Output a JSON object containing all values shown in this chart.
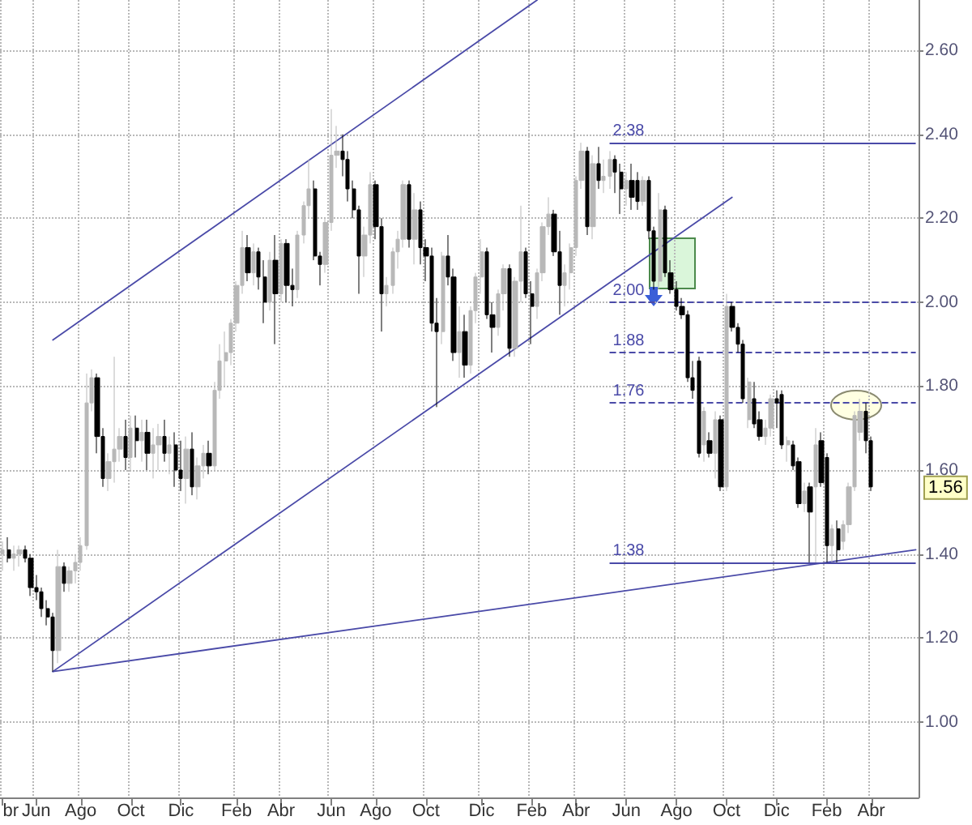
{
  "chart_data": {
    "type": "candlestick",
    "categories": [
      "br",
      null,
      null,
      null,
      null,
      null,
      "Jun",
      null,
      null,
      null,
      null,
      null,
      null,
      null,
      "Ago",
      null,
      null,
      null,
      null,
      null,
      null,
      null,
      null,
      "Oct",
      null,
      null,
      null,
      null,
      null,
      null,
      null,
      null,
      "Dic",
      null,
      null,
      null,
      null,
      null,
      null,
      null,
      null,
      null,
      "Feb",
      null,
      null,
      null,
      null,
      null,
      null,
      null,
      "Abr",
      null,
      null,
      null,
      null,
      null,
      null,
      null,
      null,
      "Jun",
      null,
      null,
      null,
      null,
      null,
      null,
      null,
      "Ago",
      null,
      null,
      null,
      null,
      null,
      null,
      null,
      null,
      "Oct",
      null,
      null,
      null,
      null,
      null,
      null,
      null,
      null,
      null,
      "Dic",
      null,
      null,
      null,
      null,
      null,
      null,
      null,
      null,
      "Feb",
      null,
      null,
      null,
      null,
      null,
      null,
      null,
      "Abr",
      null,
      null,
      null,
      null,
      null,
      null,
      null,
      null,
      "Jun",
      null,
      null,
      null,
      null,
      null,
      null,
      null,
      null,
      "Ago",
      null,
      null,
      null,
      null,
      null,
      null,
      null,
      null,
      "Oct",
      null,
      null,
      null,
      null,
      null,
      null,
      null,
      null,
      "Dic",
      null,
      null,
      null,
      null,
      null,
      null,
      null,
      null,
      "Feb",
      null,
      null,
      null,
      null,
      null,
      null,
      null,
      "Abr",
      null,
      null,
      null,
      null,
      null,
      null,
      null,
      null
    ],
    "ohlc": [
      [
        1.4,
        1.43,
        1.36,
        1.41
      ],
      [
        1.41,
        1.44,
        1.38,
        1.39
      ],
      [
        1.39,
        1.42,
        1.36,
        1.4
      ],
      [
        1.4,
        1.42,
        1.37,
        1.41
      ],
      [
        1.41,
        1.42,
        1.38,
        1.39
      ],
      [
        1.39,
        1.4,
        1.3,
        1.32
      ],
      [
        1.32,
        1.35,
        1.29,
        1.31
      ],
      [
        1.31,
        1.32,
        1.25,
        1.27
      ],
      [
        1.27,
        1.29,
        1.23,
        1.25
      ],
      [
        1.25,
        1.26,
        1.12,
        1.17
      ],
      [
        1.17,
        1.41,
        1.14,
        1.37
      ],
      [
        1.37,
        1.38,
        1.31,
        1.33
      ],
      [
        1.33,
        1.37,
        1.31,
        1.36
      ],
      [
        1.36,
        1.4,
        1.33,
        1.38
      ],
      [
        1.38,
        1.44,
        1.36,
        1.42
      ],
      [
        1.42,
        1.83,
        1.41,
        1.76
      ],
      [
        1.76,
        1.84,
        1.74,
        1.82
      ],
      [
        1.82,
        1.83,
        1.64,
        1.68
      ],
      [
        1.68,
        1.7,
        1.56,
        1.58
      ],
      [
        1.58,
        1.64,
        1.55,
        1.62
      ],
      [
        1.62,
        1.87,
        1.57,
        1.65
      ],
      [
        1.65,
        1.7,
        1.62,
        1.68
      ],
      [
        1.68,
        1.72,
        1.6,
        1.63
      ],
      [
        1.63,
        1.73,
        1.6,
        1.7
      ],
      [
        1.7,
        1.73,
        1.63,
        1.67
      ],
      [
        1.67,
        1.72,
        1.62,
        1.69
      ],
      [
        1.69,
        1.72,
        1.6,
        1.64
      ],
      [
        1.64,
        1.7,
        1.58,
        1.66
      ],
      [
        1.66,
        1.71,
        1.6,
        1.68
      ],
      [
        1.68,
        1.72,
        1.62,
        1.64
      ],
      [
        1.64,
        1.68,
        1.59,
        1.66
      ],
      [
        1.66,
        1.69,
        1.56,
        1.6
      ],
      [
        1.6,
        1.67,
        1.55,
        1.58
      ],
      [
        1.58,
        1.68,
        1.52,
        1.65
      ],
      [
        1.65,
        1.69,
        1.54,
        1.56
      ],
      [
        1.56,
        1.63,
        1.53,
        1.61
      ],
      [
        1.61,
        1.66,
        1.58,
        1.64
      ],
      [
        1.64,
        1.67,
        1.59,
        1.61
      ],
      [
        1.61,
        1.81,
        1.6,
        1.79
      ],
      [
        1.79,
        1.9,
        1.77,
        1.86
      ],
      [
        1.86,
        1.93,
        1.8,
        1.88
      ],
      [
        1.88,
        1.96,
        1.85,
        1.95
      ],
      [
        1.95,
        2.05,
        1.93,
        2.04
      ],
      [
        2.04,
        2.17,
        2.02,
        2.13
      ],
      [
        2.13,
        2.16,
        2.05,
        2.07
      ],
      [
        2.07,
        2.14,
        2.04,
        2.12
      ],
      [
        2.12,
        2.13,
        2.03,
        2.06
      ],
      [
        2.06,
        2.1,
        1.95,
        2.0
      ],
      [
        2.0,
        2.12,
        1.98,
        2.1
      ],
      [
        2.1,
        2.16,
        1.9,
        2.02
      ],
      [
        2.02,
        2.15,
        2.0,
        2.14
      ],
      [
        2.14,
        2.15,
        2.0,
        2.04
      ],
      [
        2.04,
        2.08,
        1.99,
        2.03
      ],
      [
        2.03,
        2.17,
        2.01,
        2.16
      ],
      [
        2.16,
        2.24,
        2.14,
        2.23
      ],
      [
        2.23,
        2.34,
        2.2,
        2.27
      ],
      [
        2.27,
        2.29,
        2.1,
        2.11
      ],
      [
        2.11,
        2.12,
        2.04,
        2.09
      ],
      [
        2.09,
        2.2,
        2.07,
        2.19
      ],
      [
        2.19,
        2.46,
        2.17,
        2.35
      ],
      [
        2.35,
        2.42,
        2.32,
        2.36
      ],
      [
        2.36,
        2.4,
        2.3,
        2.34
      ],
      [
        2.34,
        2.36,
        2.24,
        2.27
      ],
      [
        2.27,
        2.29,
        2.2,
        2.22
      ],
      [
        2.22,
        2.23,
        2.02,
        2.11
      ],
      [
        2.11,
        2.18,
        2.06,
        2.16
      ],
      [
        2.16,
        2.31,
        2.14,
        2.28
      ],
      [
        2.28,
        2.29,
        2.15,
        2.18
      ],
      [
        2.18,
        2.2,
        1.93,
        2.02
      ],
      [
        2.02,
        2.06,
        1.99,
        2.04
      ],
      [
        2.04,
        2.13,
        2.02,
        2.12
      ],
      [
        2.12,
        2.17,
        2.08,
        2.15
      ],
      [
        2.15,
        2.29,
        2.13,
        2.28
      ],
      [
        2.28,
        2.29,
        2.13,
        2.15
      ],
      [
        2.15,
        2.26,
        2.09,
        2.22
      ],
      [
        2.22,
        2.24,
        2.09,
        2.13
      ],
      [
        2.13,
        2.15,
        2.05,
        2.11
      ],
      [
        2.11,
        2.13,
        1.93,
        1.95
      ],
      [
        1.95,
        2.01,
        1.75,
        1.93
      ],
      [
        1.93,
        2.12,
        1.9,
        2.11
      ],
      [
        2.11,
        2.16,
        2.04,
        2.06
      ],
      [
        2.06,
        2.08,
        1.86,
        1.88
      ],
      [
        1.88,
        1.99,
        1.82,
        1.93
      ],
      [
        1.93,
        1.97,
        1.82,
        1.85
      ],
      [
        1.85,
        1.99,
        1.83,
        1.98
      ],
      [
        1.98,
        2.07,
        1.95,
        2.06
      ],
      [
        2.06,
        2.15,
        2.02,
        2.12
      ],
      [
        2.12,
        2.13,
        1.96,
        1.97
      ],
      [
        1.97,
        2.0,
        1.88,
        1.94
      ],
      [
        1.94,
        2.03,
        1.92,
        2.02
      ],
      [
        2.02,
        2.09,
        1.98,
        2.08
      ],
      [
        2.08,
        2.09,
        1.87,
        1.89
      ],
      [
        1.89,
        2.06,
        1.87,
        2.05
      ],
      [
        2.05,
        2.23,
        2.0,
        2.12
      ],
      [
        2.12,
        2.13,
        2.01,
        2.02
      ],
      [
        2.02,
        2.05,
        1.9,
        1.99
      ],
      [
        1.99,
        2.08,
        1.96,
        2.07
      ],
      [
        2.07,
        2.19,
        2.05,
        2.18
      ],
      [
        2.18,
        2.25,
        2.16,
        2.21
      ],
      [
        2.21,
        2.22,
        2.11,
        2.12
      ],
      [
        2.12,
        2.17,
        1.97,
        2.04
      ],
      [
        2.04,
        2.09,
        1.99,
        2.07
      ],
      [
        2.07,
        2.14,
        2.03,
        2.13
      ],
      [
        2.13,
        2.3,
        2.11,
        2.29
      ],
      [
        2.29,
        2.38,
        2.27,
        2.36
      ],
      [
        2.36,
        2.37,
        2.16,
        2.18
      ],
      [
        2.18,
        2.35,
        2.15,
        2.33
      ],
      [
        2.33,
        2.37,
        2.27,
        2.29
      ],
      [
        2.29,
        2.34,
        2.26,
        2.3
      ],
      [
        2.3,
        2.36,
        2.27,
        2.34
      ],
      [
        2.34,
        2.35,
        2.26,
        2.31
      ],
      [
        2.31,
        2.33,
        2.21,
        2.27
      ],
      [
        2.27,
        2.31,
        2.23,
        2.29
      ],
      [
        2.29,
        2.33,
        2.22,
        2.25
      ],
      [
        2.29,
        2.31,
        2.22,
        2.24
      ],
      [
        2.24,
        2.3,
        2.23,
        2.29
      ],
      [
        2.29,
        2.3,
        2.15,
        2.17
      ],
      [
        2.17,
        2.18,
        2.03,
        2.05
      ],
      [
        2.05,
        2.26,
        2.03,
        2.22
      ],
      [
        2.22,
        2.23,
        2.06,
        2.07
      ],
      [
        2.07,
        2.1,
        2.02,
        2.03
      ],
      [
        2.03,
        2.05,
        1.98,
        1.99
      ],
      [
        1.99,
        2.01,
        1.96,
        1.97
      ],
      [
        1.97,
        1.98,
        1.81,
        1.82
      ],
      [
        1.82,
        1.86,
        1.77,
        1.79
      ],
      [
        1.86,
        1.87,
        1.63,
        1.64
      ],
      [
        1.66,
        1.75,
        1.62,
        1.74
      ],
      [
        1.67,
        1.69,
        1.63,
        1.64
      ],
      [
        1.64,
        1.74,
        1.58,
        1.72
      ],
      [
        1.72,
        1.73,
        1.55,
        1.56
      ],
      [
        1.56,
        2.02,
        1.55,
        1.99
      ],
      [
        1.99,
        2.0,
        1.93,
        1.94
      ],
      [
        1.94,
        1.95,
        1.88,
        1.9
      ],
      [
        1.9,
        1.91,
        1.76,
        1.77
      ],
      [
        1.72,
        1.82,
        1.7,
        1.81
      ],
      [
        1.77,
        1.81,
        1.7,
        1.71
      ],
      [
        1.72,
        1.74,
        1.67,
        1.68
      ],
      [
        1.68,
        1.72,
        1.66,
        1.7
      ],
      [
        1.7,
        1.78,
        1.68,
        1.77
      ],
      [
        1.77,
        1.79,
        1.7,
        1.76
      ],
      [
        1.78,
        1.79,
        1.65,
        1.66
      ],
      [
        1.66,
        1.68,
        1.62,
        1.67
      ],
      [
        1.66,
        1.67,
        1.6,
        1.61
      ],
      [
        1.62,
        1.63,
        1.51,
        1.52
      ],
      [
        1.52,
        1.57,
        1.5,
        1.55
      ],
      [
        1.56,
        1.57,
        1.38,
        1.5
      ],
      [
        1.56,
        1.7,
        1.38,
        1.66
      ],
      [
        1.67,
        1.69,
        1.56,
        1.57
      ],
      [
        1.63,
        1.64,
        1.38,
        1.42
      ],
      [
        1.42,
        1.47,
        1.38,
        1.46
      ],
      [
        1.46,
        1.48,
        1.38,
        1.41
      ],
      [
        1.43,
        1.48,
        1.41,
        1.47
      ],
      [
        1.47,
        1.57,
        1.45,
        1.56
      ],
      [
        1.56,
        1.74,
        1.55,
        1.73
      ],
      [
        1.69,
        1.77,
        1.67,
        1.74
      ],
      [
        1.74,
        1.76,
        1.64,
        1.67
      ],
      [
        1.67,
        1.68,
        1.55,
        1.56
      ],
      null,
      null,
      null,
      null,
      null,
      null,
      null,
      null
    ],
    "colors": [
      "#b8b8b8",
      "#000000",
      "#b8b8b8",
      "#b8b8b8",
      "#000000",
      "#000000",
      "#000000",
      "#000000",
      "#000000",
      "#000000",
      "#b8b8b8",
      "#000000",
      "#b8b8b8",
      "#b8b8b8",
      "#b8b8b8",
      "#b8b8b8",
      "#b8b8b8",
      "#000000",
      "#000000",
      "#b8b8b8",
      "#b8b8b8",
      "#b8b8b8",
      "#000000",
      "#b8b8b8",
      "#000000",
      "#b8b8b8",
      "#000000",
      "#b8b8b8",
      "#b8b8b8",
      "#000000",
      "#b8b8b8",
      "#000000",
      "#000000",
      "#b8b8b8",
      "#000000",
      "#b8b8b8",
      "#b8b8b8",
      "#000000",
      "#b8b8b8",
      "#b8b8b8",
      "#b8b8b8",
      "#b8b8b8",
      "#b8b8b8",
      "#b8b8b8",
      "#000000",
      "#b8b8b8",
      "#000000",
      "#000000",
      "#b8b8b8",
      "#000000",
      "#b8b8b8",
      "#000000",
      "#000000",
      "#b8b8b8",
      "#b8b8b8",
      "#b8b8b8",
      "#000000",
      "#000000",
      "#b8b8b8",
      "#b8b8b8",
      "#b8b8b8",
      "#000000",
      "#000000",
      "#000000",
      "#000000",
      "#b8b8b8",
      "#b8b8b8",
      "#000000",
      "#000000",
      "#b8b8b8",
      "#b8b8b8",
      "#b8b8b8",
      "#b8b8b8",
      "#000000",
      "#b8b8b8",
      "#000000",
      "#000000",
      "#000000",
      "#000000",
      "#b8b8b8",
      "#000000",
      "#000000",
      "#b8b8b8",
      "#000000",
      "#b8b8b8",
      "#b8b8b8",
      "#b8b8b8",
      "#000000",
      "#000000",
      "#b8b8b8",
      "#b8b8b8",
      "#000000",
      "#b8b8b8",
      "#b8b8b8",
      "#000000",
      "#000000",
      "#b8b8b8",
      "#b8b8b8",
      "#b8b8b8",
      "#000000",
      "#000000",
      "#b8b8b8",
      "#b8b8b8",
      "#b8b8b8",
      "#b8b8b8",
      "#000000",
      "#b8b8b8",
      "#000000",
      "#b8b8b8",
      "#b8b8b8",
      "#000000",
      "#000000",
      "#b8b8b8",
      "#000000",
      "#000000",
      "#b8b8b8",
      "#000000",
      "#000000",
      "#b8b8b8",
      "#000000",
      "#000000",
      "#000000",
      "#000000",
      "#000000",
      "#000000",
      "#000000",
      "#b8b8b8",
      "#000000",
      "#b8b8b8",
      "#000000",
      "#b8b8b8",
      "#000000",
      "#000000",
      "#000000",
      "#b8b8b8",
      "#000000",
      "#000000",
      "#b8b8b8",
      "#b8b8b8",
      "#000000",
      "#000000",
      "#b8b8b8",
      "#000000",
      "#000000",
      "#b8b8b8",
      "#000000",
      "#b8b8b8",
      "#000000",
      "#000000",
      "#b8b8b8",
      "#000000",
      "#b8b8b8",
      "#b8b8b8",
      "#b8b8b8",
      "#b8b8b8",
      "#000000",
      "#000000",
      null,
      null,
      null,
      null,
      null,
      null,
      null,
      null
    ],
    "series": [
      {
        "type": "line",
        "color": "#4a4aa8",
        "values": [
          null,
          null,
          null,
          null,
          null,
          null,
          null,
          null,
          null,
          1.91,
          null,
          null,
          null,
          null,
          null,
          null,
          null,
          null,
          null,
          null,
          null,
          null,
          null,
          null,
          null,
          null,
          null,
          null,
          null,
          null,
          null,
          null,
          null,
          null,
          null,
          null,
          null,
          null,
          null,
          null,
          null,
          null,
          null,
          null,
          null,
          null,
          null,
          null,
          null,
          null,
          null,
          null,
          null,
          null,
          null,
          null,
          null,
          null,
          null,
          null,
          null,
          null,
          null,
          null,
          null,
          null,
          null,
          null,
          null,
          null,
          null,
          null,
          null,
          null,
          null,
          null,
          null,
          null,
          null,
          null,
          null,
          null,
          null,
          null,
          null,
          null,
          null,
          null,
          null,
          null,
          null,
          null,
          null,
          null,
          null,
          null,
          2.72,
          null,
          null,
          null,
          null,
          null,
          null,
          null,
          null,
          null,
          null,
          null,
          null,
          null,
          null,
          null,
          null,
          null,
          null,
          null,
          null,
          null,
          null,
          null,
          null,
          null,
          null,
          null,
          null,
          null,
          null,
          null,
          null,
          null,
          null,
          null,
          null,
          null,
          null,
          null,
          null,
          null,
          null,
          null,
          null,
          null,
          null,
          null,
          null,
          null,
          null,
          null,
          null,
          null,
          null,
          null,
          null,
          null,
          null,
          null,
          null,
          null,
          null,
          null,
          null,
          null,
          null,
          null,
          null
        ]
      },
      {
        "type": "line",
        "color": "#4a4aa8",
        "values": [
          null,
          null,
          null,
          null,
          null,
          null,
          null,
          null,
          null,
          1.12,
          null,
          null,
          null,
          null,
          null,
          null,
          null,
          null,
          null,
          null,
          null,
          null,
          null,
          null,
          null,
          null,
          null,
          null,
          null,
          null,
          null,
          null,
          null,
          null,
          null,
          null,
          null,
          null,
          null,
          null,
          null,
          null,
          null,
          null,
          null,
          null,
          null,
          null,
          null,
          null,
          null,
          null,
          null,
          null,
          null,
          null,
          null,
          null,
          null,
          null,
          null,
          null,
          null,
          null,
          null,
          null,
          null,
          null,
          null,
          null,
          null,
          null,
          null,
          null,
          null,
          null,
          null,
          null,
          null,
          null,
          null,
          null,
          null,
          null,
          null,
          null,
          null,
          null,
          null,
          null,
          null,
          null,
          null,
          null,
          null,
          null,
          null,
          null,
          null,
          null,
          null,
          null,
          null,
          null,
          null,
          null,
          null,
          null,
          null,
          null,
          null,
          null,
          null,
          null,
          null,
          null,
          null,
          null,
          null,
          null,
          null,
          null,
          null,
          null,
          null,
          null,
          null,
          null,
          null,
          null,
          null,
          2.25,
          null,
          null,
          null,
          null,
          null,
          null,
          null,
          null,
          null,
          null,
          null,
          null,
          null,
          null,
          null,
          null,
          null,
          null,
          null,
          null,
          null,
          null,
          null,
          null,
          null,
          null,
          null,
          null,
          null,
          null,
          null,
          null,
          null
        ]
      },
      {
        "type": "line",
        "color": "#4a4aa8",
        "values": [
          null,
          null,
          null,
          null,
          null,
          null,
          null,
          null,
          null,
          1.12,
          null,
          null,
          null,
          null,
          null,
          null,
          null,
          null,
          null,
          null,
          null,
          null,
          null,
          null,
          null,
          null,
          null,
          null,
          null,
          null,
          null,
          null,
          null,
          null,
          null,
          null,
          null,
          null,
          null,
          null,
          null,
          null,
          null,
          null,
          null,
          null,
          null,
          null,
          null,
          null,
          null,
          null,
          null,
          null,
          null,
          null,
          null,
          null,
          null,
          null,
          null,
          null,
          null,
          null,
          null,
          null,
          null,
          null,
          null,
          null,
          null,
          null,
          null,
          null,
          null,
          null,
          null,
          null,
          null,
          null,
          null,
          null,
          null,
          null,
          null,
          null,
          null,
          null,
          null,
          null,
          null,
          null,
          null,
          null,
          null,
          null,
          null,
          null,
          null,
          null,
          null,
          null,
          null,
          null,
          null,
          null,
          null,
          null,
          null,
          null,
          null,
          null,
          null,
          null,
          null,
          null,
          null,
          null,
          null,
          null,
          null,
          null,
          null,
          null,
          null,
          null,
          null,
          null,
          null,
          null,
          null,
          null,
          null,
          null,
          null,
          null,
          null,
          null,
          null,
          null,
          null,
          null,
          null,
          null,
          null,
          null,
          null,
          null,
          null,
          null,
          null,
          null,
          null,
          null,
          null,
          null,
          null,
          null,
          null,
          null,
          null,
          null,
          null,
          null,
          1.41
        ]
      }
    ],
    "ref_lines": [
      {
        "axis": "y",
        "value": 2.38,
        "label": "2.38",
        "color": "#4a4aa8",
        "line_style": "solid"
      },
      {
        "axis": "y",
        "value": 2.0,
        "label": "2.00",
        "color": "#4a4aa8",
        "line_style": "dashed"
      },
      {
        "axis": "y",
        "value": 1.88,
        "label": "1.88",
        "color": "#4a4aa8",
        "line_style": "dashed"
      },
      {
        "axis": "y",
        "value": 1.76,
        "label": "1.76",
        "color": "#4a4aa8",
        "line_style": "dashed"
      },
      {
        "axis": "y",
        "value": 1.38,
        "label": "1.38",
        "color": "#4a4aa8",
        "line_style": "solid"
      }
    ],
    "annotations": [
      "1.56"
    ],
    "ylim": [
      0.82,
      2.72
    ],
    "yticks": [
      {
        "value": 1.0,
        "label": "1.00"
      },
      {
        "value": 1.2,
        "label": "1.20"
      },
      {
        "value": 1.4,
        "label": "1.40"
      },
      {
        "value": 1.6,
        "label": "1.60"
      },
      {
        "value": 1.8,
        "label": "1.80"
      },
      {
        "value": 2.0,
        "label": "2.00"
      },
      {
        "value": 2.2,
        "label": "2.20"
      },
      {
        "value": 2.4,
        "label": "2.40"
      },
      {
        "value": 2.6,
        "label": "2.60"
      }
    ],
    "grid": true
  }
}
